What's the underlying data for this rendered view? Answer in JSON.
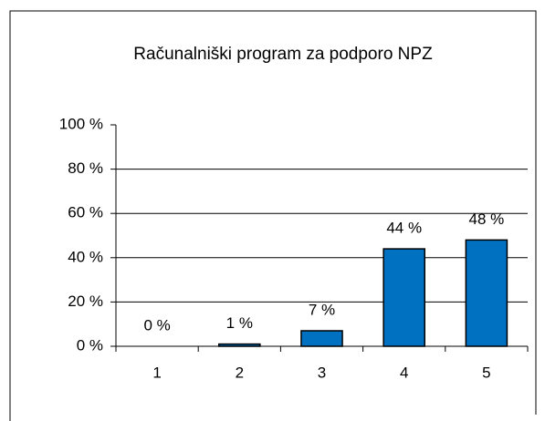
{
  "chart_data": {
    "type": "bar",
    "title": "Računalniški program za podporo NPZ",
    "categories": [
      "1",
      "2",
      "3",
      "4",
      "5"
    ],
    "values": [
      0,
      1,
      7,
      44,
      48
    ],
    "value_labels": [
      "0 %",
      "1 %",
      "7 %",
      "44 %",
      "48 %"
    ],
    "color": "#0070c0",
    "ylim": [
      0,
      100
    ],
    "yticks": [
      {
        "value": 0,
        "label": "0 %"
      },
      {
        "value": 20,
        "label": "20 %"
      },
      {
        "value": 40,
        "label": "40 %"
      },
      {
        "value": 60,
        "label": "60 %"
      },
      {
        "value": 80,
        "label": "80 %"
      },
      {
        "value": 100,
        "label": "100 %"
      }
    ],
    "grid": true
  }
}
